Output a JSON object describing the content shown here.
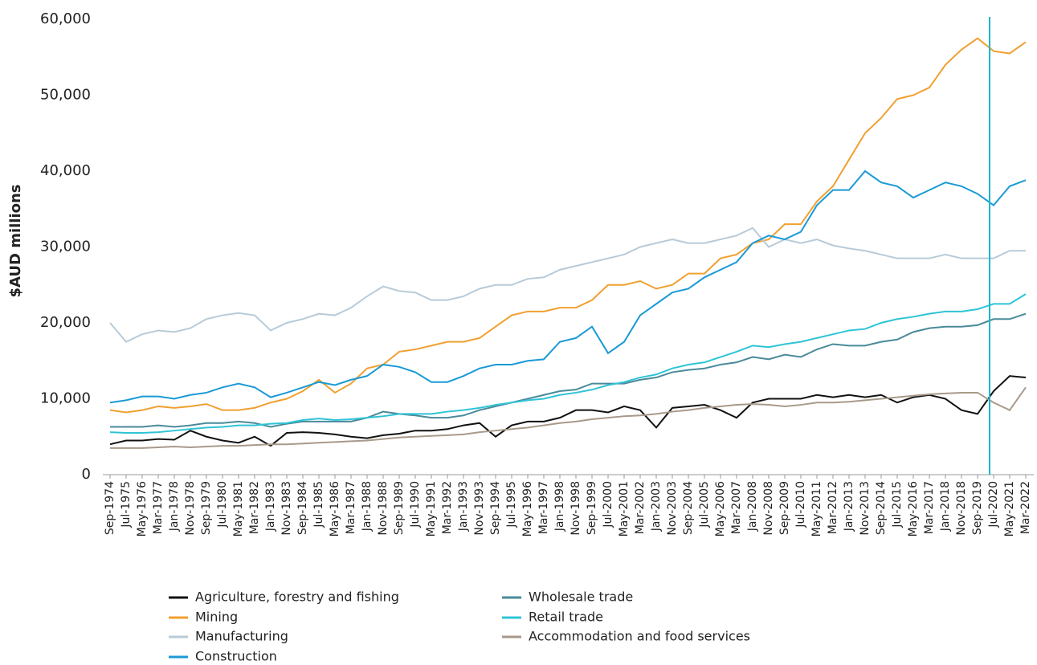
{
  "chart_data": {
    "type": "line",
    "y_label": "$AUD millions",
    "categories": [
      "Sep-1974",
      "Jul-1975",
      "May-1976",
      "Mar-1977",
      "Jan-1978",
      "Nov-1978",
      "Sep-1979",
      "Jul-1980",
      "May-1981",
      "Mar-1982",
      "Jan-1983",
      "Nov-1983",
      "Sep-1984",
      "Jul-1985",
      "May-1986",
      "Mar-1987",
      "Jan-1988",
      "Nov-1988",
      "Sep-1989",
      "Jul-1990",
      "May-1991",
      "Mar-1992",
      "Jan-1993",
      "Nov-1993",
      "Sep-1994",
      "Jul-1995",
      "May-1996",
      "Mar-1997",
      "Jan-1998",
      "Nov-1998",
      "Sep-1999",
      "Jul-2000",
      "May-2001",
      "Mar-2002",
      "Jan-2003",
      "Nov-2003",
      "Sep-2004",
      "Jul-2005",
      "May-2006",
      "Mar-2007",
      "Jan-2008",
      "Nov-2008",
      "Sep-2009",
      "Jul-2010",
      "May-2011",
      "Mar-2012",
      "Jan-2013",
      "Nov-2013",
      "Sep-2014",
      "Jul-2015",
      "May-2016",
      "Mar-2017",
      "Jan-2018",
      "Nov-2018",
      "Sep-2019",
      "Jul-2020",
      "May-2021",
      "Mar-2022"
    ],
    "series": [
      {
        "name": "Agriculture, forestry and fishing",
        "color": "#111111",
        "values": [
          4000,
          4500,
          4500,
          4700,
          4600,
          5800,
          5000,
          4500,
          4200,
          5000,
          3800,
          5500,
          5600,
          5500,
          5300,
          5000,
          4800,
          5200,
          5400,
          5800,
          5800,
          6000,
          6500,
          6800,
          5000,
          6500,
          7000,
          7000,
          7500,
          8500,
          8500,
          8200,
          9000,
          8500,
          6200,
          8800,
          9000,
          9200,
          8500,
          7500,
          9500,
          10000,
          10000,
          10000,
          10500,
          10200,
          10500,
          10200,
          10500,
          9500,
          10200,
          10500,
          10000,
          8500,
          8000,
          11000,
          13000,
          12800
        ]
      },
      {
        "name": "Mining",
        "color": "#f0a030",
        "values": [
          8500,
          8200,
          8500,
          9000,
          8800,
          9000,
          9300,
          8500,
          8500,
          8800,
          9500,
          10000,
          11000,
          12500,
          10800,
          12000,
          14000,
          14500,
          16200,
          16500,
          17000,
          17500,
          17500,
          18000,
          19500,
          21000,
          21500,
          21500,
          22000,
          22000,
          23000,
          25000,
          25000,
          25500,
          24500,
          25000,
          26500,
          26500,
          28500,
          29000,
          30500,
          31000,
          33000,
          33000,
          36000,
          38000,
          41500,
          45000,
          47000,
          49500,
          50000,
          51000,
          54000,
          56000,
          57500,
          55800,
          55500,
          57000
        ]
      },
      {
        "name": "Manufacturing",
        "color": "#b8cbd8",
        "values": [
          20000,
          17500,
          18500,
          19000,
          18800,
          19300,
          20500,
          21000,
          21300,
          21000,
          19000,
          20000,
          20500,
          21200,
          21000,
          22000,
          23500,
          24800,
          24200,
          24000,
          23000,
          23000,
          23500,
          24500,
          25000,
          25000,
          25800,
          26000,
          27000,
          27500,
          28000,
          28500,
          29000,
          30000,
          30500,
          31000,
          30500,
          30500,
          31000,
          31500,
          32500,
          30000,
          31000,
          30500,
          31000,
          30200,
          29800,
          29500,
          29000,
          28500,
          28500,
          28500,
          29000,
          28500,
          28500,
          28500,
          29500,
          29500
        ]
      },
      {
        "name": "Construction",
        "color": "#1a9ad6",
        "values": [
          9500,
          9800,
          10300,
          10300,
          10000,
          10500,
          10800,
          11500,
          12000,
          11500,
          10200,
          10800,
          11500,
          12200,
          11800,
          12500,
          13000,
          14500,
          14200,
          13500,
          12200,
          12200,
          13000,
          14000,
          14500,
          14500,
          15000,
          15200,
          17500,
          18000,
          19500,
          16000,
          17500,
          21000,
          22500,
          24000,
          24500,
          26000,
          27000,
          28000,
          30500,
          31500,
          31000,
          32000,
          35500,
          37500,
          37500,
          40000,
          38500,
          38000,
          36500,
          37500,
          38500,
          38000,
          37000,
          35500,
          38000,
          38800
        ]
      },
      {
        "name": "Wholesale trade",
        "color": "#4a8a9a",
        "values": [
          6300,
          6300,
          6300,
          6500,
          6300,
          6500,
          6800,
          6800,
          7000,
          6800,
          6300,
          6700,
          7000,
          7000,
          7000,
          7000,
          7500,
          8300,
          8000,
          7800,
          7500,
          7500,
          7800,
          8500,
          9000,
          9500,
          10000,
          10500,
          11000,
          11200,
          12000,
          12000,
          12000,
          12500,
          12800,
          13500,
          13800,
          14000,
          14500,
          14800,
          15500,
          15200,
          15800,
          15500,
          16500,
          17200,
          17000,
          17000,
          17500,
          17800,
          18800,
          19300,
          19500,
          19500,
          19700,
          20500,
          20500,
          21200
        ]
      },
      {
        "name": "Retail trade",
        "color": "#2ec4d6",
        "values": [
          5600,
          5500,
          5500,
          5600,
          5800,
          6000,
          6200,
          6300,
          6500,
          6500,
          6700,
          6800,
          7200,
          7400,
          7200,
          7300,
          7500,
          7700,
          8000,
          8000,
          8000,
          8300,
          8500,
          8800,
          9200,
          9500,
          9800,
          10000,
          10500,
          10800,
          11200,
          11800,
          12200,
          12800,
          13200,
          14000,
          14500,
          14800,
          15500,
          16200,
          17000,
          16800,
          17200,
          17500,
          18000,
          18500,
          19000,
          19200,
          20000,
          20500,
          20800,
          21200,
          21500,
          21500,
          21800,
          22500,
          22500,
          23800
        ]
      },
      {
        "name": "Accommodation and food services",
        "color": "#a89a8a",
        "values": [
          3500,
          3500,
          3500,
          3600,
          3700,
          3600,
          3700,
          3800,
          3800,
          3900,
          4000,
          4000,
          4100,
          4200,
          4300,
          4400,
          4500,
          4700,
          4900,
          5000,
          5100,
          5200,
          5300,
          5600,
          5800,
          6000,
          6200,
          6500,
          6800,
          7000,
          7300,
          7500,
          7700,
          7800,
          8000,
          8300,
          8500,
          8800,
          9000,
          9200,
          9300,
          9200,
          9000,
          9200,
          9500,
          9500,
          9600,
          9800,
          10000,
          10200,
          10400,
          10600,
          10700,
          10800,
          10800,
          9500,
          8500,
          11500
        ]
      }
    ],
    "ylim": [
      0,
      60000
    ],
    "yticks": [
      0,
      {
        "value": 10000,
        "label": "10,000"
      },
      {
        "value": 20000,
        "label": "20,000"
      },
      {
        "value": 30000,
        "label": "30,000"
      },
      {
        "value": 40000,
        "label": "40,000"
      },
      {
        "value": 50000,
        "label": "50,000"
      },
      {
        "value": 60000,
        "label": "60,000"
      }
    ],
    "grid": false,
    "legend": "bottom",
    "reference_line": {
      "position": 54.75,
      "color": "#1ab8d0"
    }
  }
}
